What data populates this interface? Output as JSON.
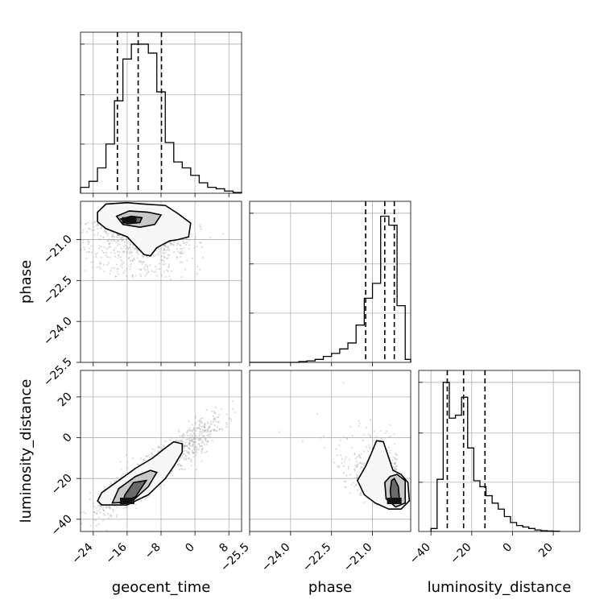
{
  "chart_data": {
    "type": "corner",
    "parameters": [
      "geocent_time",
      "phase",
      "luminosity_distance"
    ],
    "axis_labels": [
      "geocent_time",
      "phase",
      "luminosity_distance"
    ],
    "grid": true,
    "ranges": {
      "geocent_time": [
        -27,
        11
      ],
      "phase": [
        -25.5,
        -19.6
      ],
      "luminosity_distance": [
        -46,
        33
      ]
    },
    "ticks": {
      "geocent_time": [
        -24,
        -16,
        -8,
        0,
        8
      ],
      "phase": [
        -25.5,
        -24.0,
        -22.5,
        -21.0
      ],
      "luminosity_distance": [
        -40,
        -20,
        0,
        20
      ]
    },
    "tick_labels": {
      "geocent_time": [
        "−24",
        "−16",
        "−8",
        "0",
        "8"
      ],
      "phase": [
        "−25.5",
        "−24.0",
        "−22.5",
        "−21.0"
      ],
      "luminosity_distance": [
        "−40",
        "−20",
        "0",
        "20"
      ]
    },
    "histograms": [
      {
        "parameter": "geocent_time",
        "bin_edges": [
          -27,
          -25,
          -23,
          -21,
          -19,
          -17,
          -15,
          -13,
          -11,
          -9,
          -7,
          -5,
          -3,
          -1,
          1,
          3,
          5,
          7,
          9,
          11
        ],
        "counts": [
          0.04,
          0.08,
          0.17,
          0.33,
          0.62,
          0.9,
          1.0,
          1.0,
          0.94,
          0.68,
          0.34,
          0.21,
          0.17,
          0.12,
          0.07,
          0.04,
          0.03,
          0.015,
          0.005
        ],
        "quantiles": [
          -18.3,
          -13.4,
          -7.9
        ]
      },
      {
        "parameter": "phase",
        "bin_edges": [
          -25.5,
          -25.2,
          -24.9,
          -24.6,
          -24.3,
          -24.0,
          -23.7,
          -23.4,
          -23.1,
          -22.8,
          -22.5,
          -22.2,
          -21.9,
          -21.6,
          -21.3,
          -21.0,
          -20.7,
          -20.4,
          -20.1,
          -19.8,
          -19.5
        ],
        "counts": [
          0,
          0,
          0,
          0,
          0,
          0,
          0.005,
          0.01,
          0.02,
          0.04,
          0.06,
          0.09,
          0.13,
          0.25,
          0.43,
          0.53,
          0.98,
          0.92,
          0.38,
          0.02
        ],
        "quantiles": [
          -21.25,
          -20.55,
          -20.2
        ]
      },
      {
        "parameter": "luminosity_distance",
        "bin_edges": [
          -40,
          -37,
          -34,
          -31,
          -28,
          -25,
          -22,
          -19,
          -16,
          -13,
          -10,
          -7,
          -4,
          -1,
          2,
          5,
          8,
          11,
          14,
          17,
          20,
          23
        ],
        "counts": [
          0.02,
          0.35,
          1.0,
          0.76,
          0.78,
          0.9,
          0.56,
          0.34,
          0.3,
          0.24,
          0.19,
          0.15,
          0.1,
          0.06,
          0.04,
          0.03,
          0.02,
          0.01,
          0.005,
          0.003,
          0.002
        ],
        "quantiles": [
          -32,
          -24,
          -13.5
        ]
      }
    ],
    "density_2d": [
      {
        "x": "geocent_time",
        "y": "phase",
        "peak": [
          -15.5,
          -20.3
        ],
        "contours": [
          [
            [
              -23,
              -20.0
            ],
            [
              -21,
              -19.7
            ],
            [
              -16,
              -19.65
            ],
            [
              -12,
              -19.7
            ],
            [
              -7,
              -19.75
            ],
            [
              -4,
              -20.05
            ],
            [
              -1,
              -20.4
            ],
            [
              -1.5,
              -20.9
            ],
            [
              -4,
              -21.0
            ],
            [
              -6,
              -21.05
            ],
            [
              -9,
              -21.3
            ],
            [
              -10.5,
              -21.6
            ],
            [
              -12,
              -21.55
            ],
            [
              -16,
              -20.9
            ],
            [
              -21,
              -20.6
            ],
            [
              -23,
              -20.35
            ]
          ],
          [
            [
              -18.5,
              -20.15
            ],
            [
              -15.5,
              -19.95
            ],
            [
              -11,
              -20.0
            ],
            [
              -8,
              -20.1
            ],
            [
              -9.5,
              -20.45
            ],
            [
              -13,
              -20.55
            ],
            [
              -17,
              -20.45
            ]
          ],
          [
            [
              -17.5,
              -20.25
            ],
            [
              -15,
              -20.15
            ],
            [
              -12.5,
              -20.2
            ],
            [
              -13,
              -20.38
            ],
            [
              -16,
              -20.42
            ]
          ]
        ],
        "samples_cloud": [
          [
            -23,
            -19.8,
            -1,
            -22.2
          ]
        ]
      },
      {
        "x": "geocent_time",
        "y": "luminosity_distance",
        "peak": [
          -16,
          -31
        ],
        "contours": [
          [
            [
              -22,
              -33
            ],
            [
              -16,
              -33
            ],
            [
              -11,
              -28
            ],
            [
              -7,
              -20
            ],
            [
              -5,
              -14
            ],
            [
              -3,
              -7
            ],
            [
              -3,
              -3
            ],
            [
              -5,
              -2
            ],
            [
              -7,
              -5
            ],
            [
              -10,
              -10
            ],
            [
              -14,
              -15
            ],
            [
              -18,
              -21
            ],
            [
              -22,
              -27
            ],
            [
              -23,
              -31
            ]
          ],
          [
            [
              -19.5,
              -32
            ],
            [
              -15,
              -31.5
            ],
            [
              -11,
              -24
            ],
            [
              -9,
              -17
            ],
            [
              -10.5,
              -16
            ],
            [
              -14,
              -19
            ],
            [
              -18,
              -25
            ]
          ],
          [
            [
              -17,
              -31.5
            ],
            [
              -14,
              -29
            ],
            [
              -11.5,
              -21
            ],
            [
              -14.5,
              -22
            ],
            [
              -16.5,
              -28
            ]
          ]
        ]
      },
      {
        "x": "phase",
        "y": "luminosity_distance",
        "peak": [
          -20.2,
          -31
        ],
        "contours": [
          [
            [
              -21.55,
              -21
            ],
            [
              -21.3,
              -28
            ],
            [
              -20.9,
              -32
            ],
            [
              -20.4,
              -35
            ],
            [
              -19.95,
              -35
            ],
            [
              -19.65,
              -31
            ],
            [
              -19.7,
              -22
            ],
            [
              -19.95,
              -18
            ],
            [
              -20.25,
              -16
            ],
            [
              -20.45,
              -8
            ],
            [
              -20.6,
              -2
            ],
            [
              -20.85,
              -1.5
            ],
            [
              -21.05,
              -8
            ],
            [
              -21.25,
              -14
            ]
          ],
          [
            [
              -20.55,
              -22
            ],
            [
              -20.5,
              -30
            ],
            [
              -20.15,
              -34
            ],
            [
              -19.8,
              -32
            ],
            [
              -19.8,
              -21
            ],
            [
              -20.1,
              -18
            ],
            [
              -20.35,
              -19
            ]
          ],
          [
            [
              -20.35,
              -26
            ],
            [
              -20.3,
              -32
            ],
            [
              -20.0,
              -32
            ],
            [
              -20.05,
              -24
            ],
            [
              -20.2,
              -20
            ],
            [
              -20.3,
              -21
            ]
          ]
        ]
      }
    ]
  }
}
